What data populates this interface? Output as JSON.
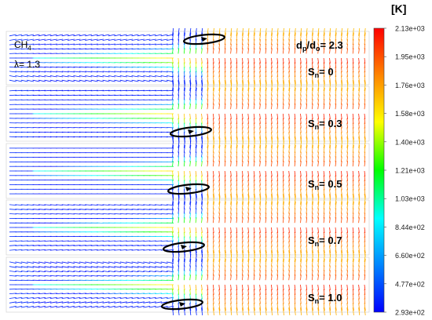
{
  "figure": {
    "unit_label": "[K]",
    "fuel_label": "CH",
    "fuel_subscript": "4",
    "lambda_label": "λ= 1.3",
    "diameter_ratio": {
      "prefix": "d",
      "sub1": "p",
      "mid": "/d",
      "sub2": "o",
      "suffix": "= 2.3"
    }
  },
  "panels": [
    {
      "swirl_symbol": "S",
      "swirl_subscript": "n",
      "swirl_value_text": "= 0",
      "swirl_value": 0.0
    },
    {
      "swirl_symbol": "S",
      "swirl_subscript": "n",
      "swirl_value_text": "= 0.3",
      "swirl_value": 0.3
    },
    {
      "swirl_symbol": "S",
      "swirl_subscript": "n",
      "swirl_value_text": "= 0.5",
      "swirl_value": 0.5
    },
    {
      "swirl_symbol": "S",
      "swirl_subscript": "n",
      "swirl_value_text": "= 0.7",
      "swirl_value": 0.7
    },
    {
      "swirl_symbol": "S",
      "swirl_subscript": "n",
      "swirl_value_text": "= 1.0",
      "swirl_value": 1.0
    }
  ],
  "colorbar": {
    "tick_labels": [
      "2.13e+03",
      "1.95e+03",
      "1.76e+03",
      "1.58e+03",
      "1.40e+03",
      "1.21e+03",
      "1.03e+03",
      "8.44e+02",
      "6.60e+02",
      "4.77e+02",
      "2.93e+02"
    ],
    "colors": [
      "#ff0000",
      "#ff8800",
      "#ffff00",
      "#00ff00",
      "#00ffff",
      "#0088ff",
      "#0000ff"
    ]
  }
}
